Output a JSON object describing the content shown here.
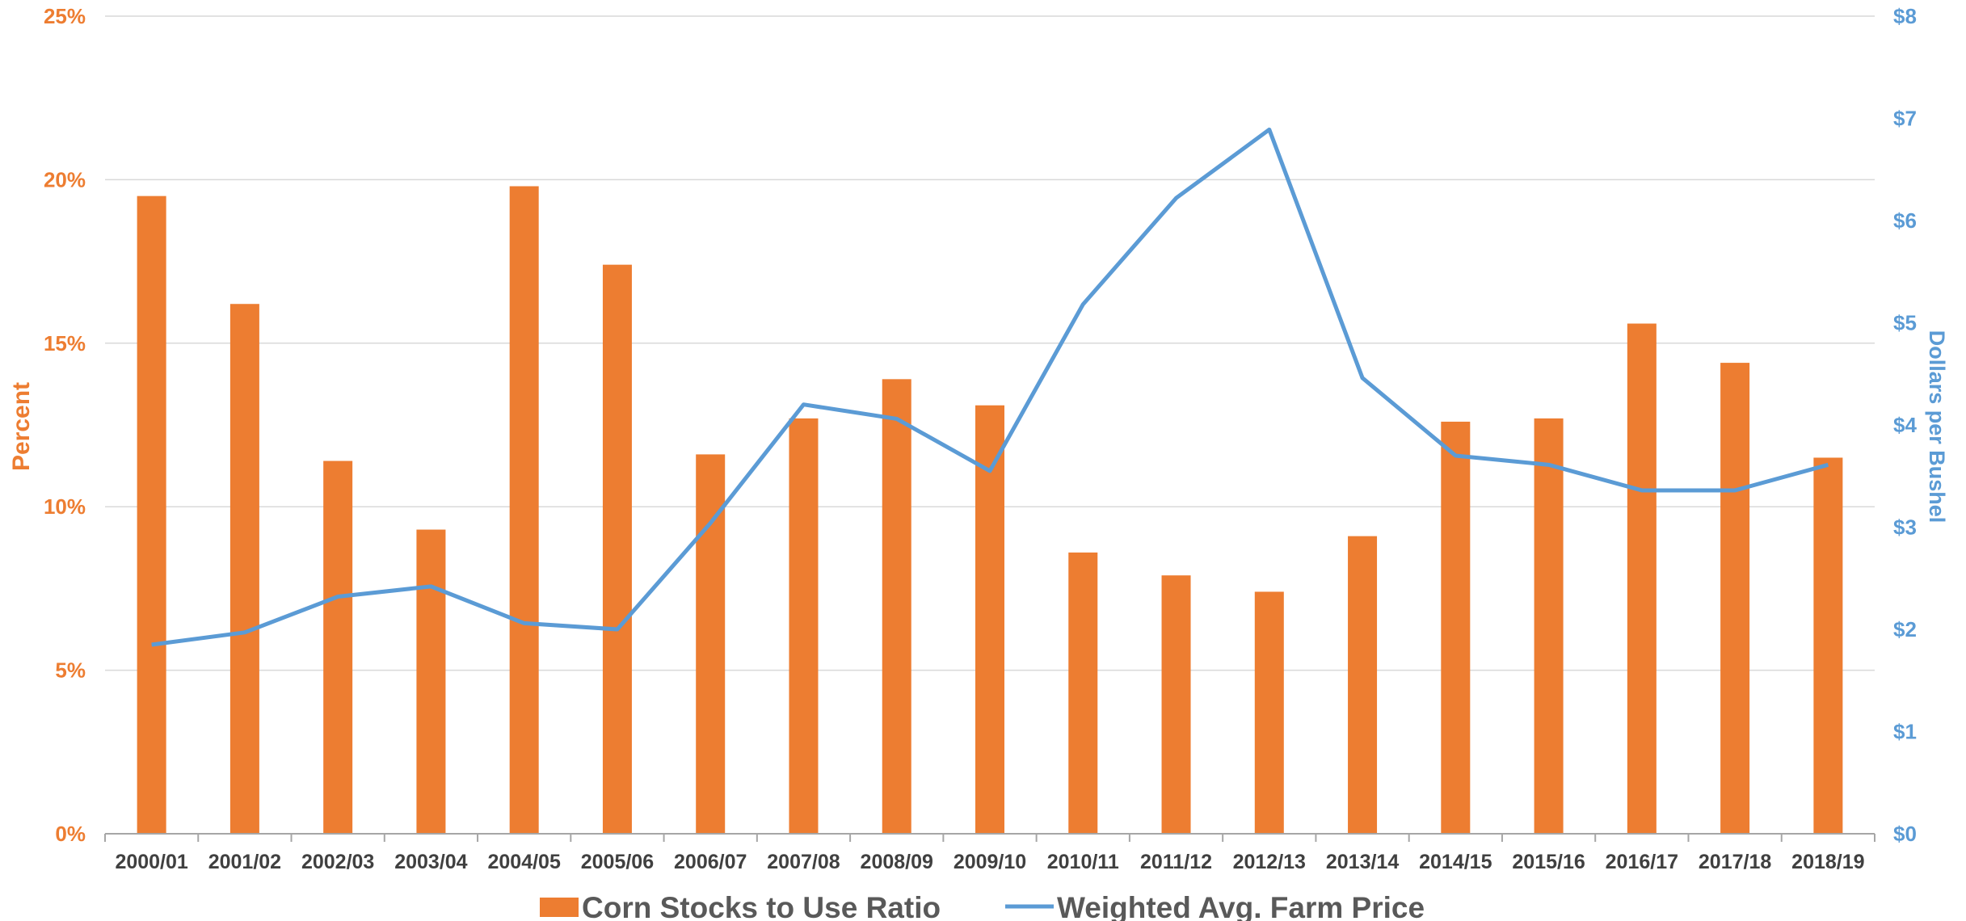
{
  "chart_data": {
    "type": "bar",
    "categories": [
      "2000/01",
      "2001/02",
      "2002/03",
      "2003/04",
      "2004/05",
      "2005/06",
      "2006/07",
      "2007/08",
      "2008/09",
      "2009/10",
      "2010/11",
      "2011/12",
      "2012/13",
      "2013/14",
      "2014/15",
      "2015/16",
      "2016/17",
      "2017/18",
      "2018/19"
    ],
    "series": [
      {
        "name": "Corn Stocks to Use Ratio",
        "type": "bar",
        "axis": "left",
        "color": "#ED7D31",
        "values": [
          19.5,
          16.2,
          11.4,
          9.3,
          19.8,
          17.4,
          11.6,
          12.7,
          13.9,
          13.1,
          8.6,
          7.9,
          7.4,
          9.1,
          12.6,
          12.7,
          15.6,
          14.4,
          11.5
        ]
      },
      {
        "name": "Weighted Avg. Farm Price",
        "type": "line",
        "axis": "right",
        "color": "#5B9BD5",
        "values": [
          1.85,
          1.97,
          2.32,
          2.42,
          2.06,
          2.0,
          3.04,
          4.2,
          4.06,
          3.55,
          5.18,
          6.22,
          6.89,
          4.46,
          3.7,
          3.61,
          3.36,
          3.36,
          3.61
        ]
      }
    ],
    "left_axis": {
      "label": "Percent",
      "ylim": [
        0,
        25
      ],
      "ticks": [
        0,
        5,
        10,
        15,
        20,
        25
      ],
      "tick_labels": [
        "0%",
        "5%",
        "10%",
        "15%",
        "20%",
        "25%"
      ]
    },
    "right_axis": {
      "label": "Dollars per Bushel",
      "ylim": [
        0,
        8
      ],
      "ticks": [
        0,
        1,
        2,
        3,
        4,
        5,
        6,
        7,
        8
      ],
      "tick_labels": [
        "$0",
        "$1",
        "$2",
        "$3",
        "$4",
        "$5",
        "$6",
        "$7",
        "$8"
      ]
    },
    "grid": true,
    "legend_position": "bottom-center",
    "legend": [
      "Corn Stocks to Use Ratio",
      "Weighted Avg. Farm Price"
    ]
  }
}
